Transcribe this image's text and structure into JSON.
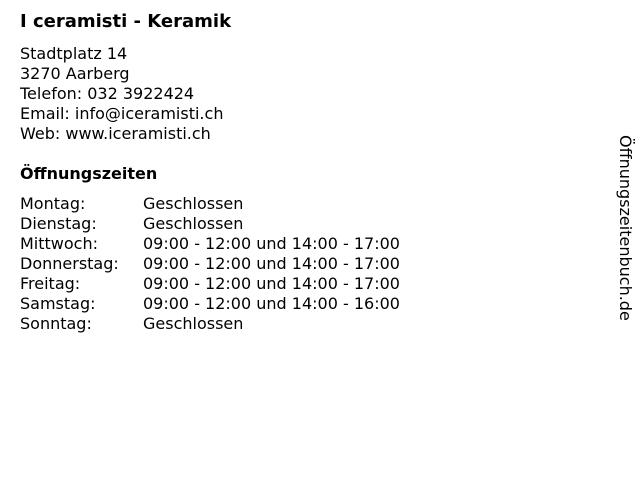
{
  "title": "I ceramisti - Keramik",
  "address": {
    "street": "Stadtplatz 14",
    "city": "3270 Aarberg",
    "phone": "Telefon: 032 3922424",
    "email": "Email: info@iceramisti.ch",
    "web": "Web: www.iceramisti.ch"
  },
  "hours_title": "Öffnungszeiten",
  "hours": [
    {
      "day": "Montag:",
      "time": "Geschlossen"
    },
    {
      "day": "Dienstag:",
      "time": "Geschlossen"
    },
    {
      "day": "Mittwoch:",
      "time": "09:00 - 12:00 und 14:00 - 17:00"
    },
    {
      "day": "Donnerstag:",
      "time": "09:00 - 12:00 und 14:00 - 17:00"
    },
    {
      "day": "Freitag:",
      "time": "09:00 - 12:00 und 14:00 - 17:00"
    },
    {
      "day": "Samstag:",
      "time": "09:00 - 12:00 und 14:00 - 16:00"
    },
    {
      "day": "Sonntag:",
      "time": "Geschlossen"
    }
  ],
  "watermark": "Öffnungszeitenbuch.de"
}
